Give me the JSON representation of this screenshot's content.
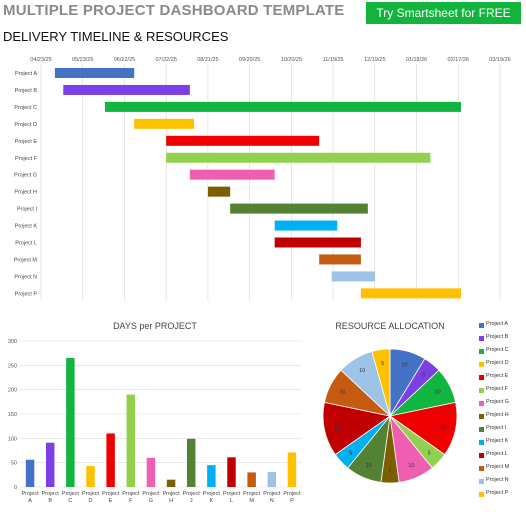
{
  "header": {
    "title": "MULTIPLE PROJECT DASHBOARD TEMPLATE",
    "cta_label": "Try Smartsheet for FREE",
    "subtitle": "DELIVERY TIMELINE & RESOURCES"
  },
  "colors": {
    "Project A": "#4472c4",
    "Project B": "#7b3fe4",
    "Project C": "#13b541",
    "Project D": "#ffc000",
    "Project E": "#ee0000",
    "Project F": "#92d050",
    "Project G": "#ee5fb2",
    "Project H": "#7b5f00",
    "Project I": "#548235",
    "Project J": "#548235",
    "Project K": "#00b0f0",
    "Project L": "#c00000",
    "Project M": "#c55a11",
    "Project N": "#9dc3e6",
    "Project P": "#ffc000"
  },
  "chart_data": [
    {
      "type": "gantt",
      "title": "",
      "x_ticks": [
        "04/23/25",
        "05/23/25",
        "06/22/25",
        "07/22/25",
        "08/21/25",
        "09/20/25",
        "10/20/25",
        "11/19/25",
        "12/19/25",
        "01/18/26",
        "02/17/26",
        "03/19/26"
      ],
      "tasks": [
        {
          "name": "Project A",
          "start": "2025-05-03",
          "end": "2025-06-29"
        },
        {
          "name": "Project B",
          "start": "2025-05-09",
          "end": "2025-08-08"
        },
        {
          "name": "Project C",
          "start": "2025-06-08",
          "end": "2026-02-19"
        },
        {
          "name": "Project D",
          "start": "2025-06-29",
          "end": "2025-08-11"
        },
        {
          "name": "Project E",
          "start": "2025-07-22",
          "end": "2025-11-09"
        },
        {
          "name": "Project F",
          "start": "2025-07-22",
          "end": "2026-01-28"
        },
        {
          "name": "Project G",
          "start": "2025-08-08",
          "end": "2025-10-08"
        },
        {
          "name": "Project H",
          "start": "2025-08-21",
          "end": "2025-09-06"
        },
        {
          "name": "Project I",
          "start": "2025-09-06",
          "end": "2025-12-14"
        },
        {
          "name": "Project K",
          "start": "2025-10-08",
          "end": "2025-11-22"
        },
        {
          "name": "Project L",
          "start": "2025-10-08",
          "end": "2025-12-09"
        },
        {
          "name": "Project M",
          "start": "2025-11-09",
          "end": "2025-12-09"
        },
        {
          "name": "Project N",
          "start": "2025-11-18",
          "end": "2025-12-19"
        },
        {
          "name": "Project P",
          "start": "2025-12-09",
          "end": "2026-02-19"
        }
      ]
    },
    {
      "type": "bar",
      "title": "DAYS per PROJECT",
      "xlabel": "",
      "ylabel": "",
      "ylim": [
        0,
        300
      ],
      "yticks": [
        0,
        50,
        100,
        150,
        200,
        250,
        300
      ],
      "categories": [
        "Project A",
        "Project B",
        "Project C",
        "Project D",
        "Project E",
        "Project F",
        "Project G",
        "Project H",
        "Project J",
        "Project K",
        "Project L",
        "Project M",
        "Project N",
        "Project P"
      ],
      "values": [
        56,
        91,
        265,
        43,
        110,
        190,
        60,
        15,
        99,
        45,
        61,
        30,
        31,
        71
      ]
    },
    {
      "type": "pie",
      "title": "RESOURCE ALLOCATION",
      "legend": "right",
      "slices": [
        {
          "name": "Project A",
          "value": 10
        },
        {
          "name": "Project B",
          "value": 5
        },
        {
          "name": "Project C",
          "value": 10
        },
        {
          "name": "Project D",
          "value": 0
        },
        {
          "name": "Project E",
          "value": 15
        },
        {
          "name": "Project F",
          "value": 5
        },
        {
          "name": "Project G",
          "value": 10
        },
        {
          "name": "Project H",
          "value": 5
        },
        {
          "name": "Project I",
          "value": 10
        },
        {
          "name": "Project K",
          "value": 5
        },
        {
          "name": "Project L",
          "value": 15
        },
        {
          "name": "Project M",
          "value": 10
        },
        {
          "name": "Project N",
          "value": 10
        },
        {
          "name": "Project P",
          "value": 5
        }
      ],
      "legend_items": [
        "Project A",
        "Project B",
        "Project C",
        "Project D",
        "Project E",
        "Project F",
        "Project G",
        "Project H",
        "Project I",
        "Project K",
        "Project L",
        "Project M",
        "Project N",
        "Project P"
      ]
    }
  ]
}
